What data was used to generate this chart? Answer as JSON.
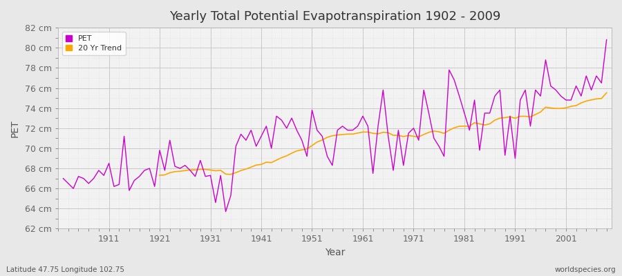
{
  "title": "Yearly Total Potential Evapotranspiration 1902 - 2009",
  "xlabel": "Year",
  "ylabel": "PET",
  "footnote_left": "Latitude 47.75 Longitude 102.75",
  "footnote_right": "worldspecies.org",
  "pet_color": "#cc00cc",
  "trend_color": "#ffa500",
  "bg_color": "#e8e8e8",
  "plot_bg_color": "#f2f2f2",
  "grid_major_color": "#c8c8c8",
  "grid_minor_color": "#d8d8d8",
  "ylim": [
    62,
    82
  ],
  "yticks": [
    62,
    64,
    66,
    68,
    70,
    72,
    74,
    76,
    78,
    80,
    82
  ],
  "xticks": [
    1911,
    1921,
    1931,
    1941,
    1951,
    1961,
    1971,
    1981,
    1991,
    2001
  ],
  "xlim": [
    1901,
    2010
  ],
  "years": [
    1902,
    1903,
    1904,
    1905,
    1906,
    1907,
    1908,
    1909,
    1910,
    1911,
    1912,
    1913,
    1914,
    1915,
    1916,
    1917,
    1918,
    1919,
    1920,
    1921,
    1922,
    1923,
    1924,
    1925,
    1926,
    1927,
    1928,
    1929,
    1930,
    1931,
    1932,
    1933,
    1934,
    1935,
    1936,
    1937,
    1938,
    1939,
    1940,
    1941,
    1942,
    1943,
    1944,
    1945,
    1946,
    1947,
    1948,
    1949,
    1950,
    1951,
    1952,
    1953,
    1954,
    1955,
    1956,
    1957,
    1958,
    1959,
    1960,
    1961,
    1962,
    1963,
    1964,
    1965,
    1966,
    1967,
    1968,
    1969,
    1970,
    1971,
    1972,
    1973,
    1974,
    1975,
    1976,
    1977,
    1978,
    1979,
    1980,
    1981,
    1982,
    1983,
    1984,
    1985,
    1986,
    1987,
    1988,
    1989,
    1990,
    1991,
    1992,
    1993,
    1994,
    1995,
    1996,
    1997,
    1998,
    1999,
    2000,
    2001,
    2002,
    2003,
    2004,
    2005,
    2006,
    2007,
    2008,
    2009
  ],
  "pet_values": [
    67.0,
    66.5,
    66.0,
    67.2,
    67.0,
    66.5,
    67.0,
    67.8,
    67.3,
    68.5,
    66.2,
    66.4,
    71.2,
    65.8,
    66.8,
    67.2,
    67.8,
    68.0,
    66.2,
    69.8,
    67.8,
    70.8,
    68.2,
    68.0,
    68.3,
    67.8,
    67.2,
    68.8,
    67.2,
    67.3,
    64.6,
    67.3,
    63.7,
    65.3,
    70.2,
    71.4,
    70.8,
    71.8,
    70.2,
    71.2,
    72.2,
    70.0,
    73.2,
    72.8,
    72.0,
    73.0,
    71.8,
    70.8,
    69.2,
    73.8,
    71.8,
    71.2,
    69.2,
    68.3,
    71.8,
    72.2,
    71.8,
    71.8,
    72.2,
    73.2,
    72.2,
    67.5,
    72.2,
    75.8,
    71.2,
    67.8,
    71.8,
    68.3,
    71.5,
    72.0,
    70.8,
    75.8,
    73.5,
    71.0,
    70.2,
    69.2,
    77.8,
    76.8,
    75.2,
    73.5,
    71.8,
    74.8,
    69.8,
    73.5,
    73.5,
    75.2,
    75.8,
    69.3,
    73.2,
    69.0,
    74.8,
    75.8,
    72.2,
    75.8,
    75.2,
    78.8,
    76.2,
    75.8,
    75.2,
    74.8,
    74.8,
    76.2,
    75.2,
    77.2,
    75.8,
    77.2,
    76.5,
    80.8
  ],
  "legend_labels": [
    "PET",
    "20 Yr Trend"
  ],
  "legend_marker_pet": "s",
  "legend_marker_trend": "s"
}
